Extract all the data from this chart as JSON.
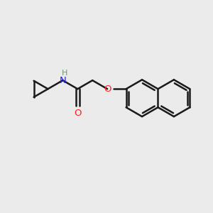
{
  "background_color": "#ebebeb",
  "bond_color": "#1a1a1a",
  "bond_width": 1.8,
  "N_color": "#2020ff",
  "O_color": "#ff2020",
  "H_color": "#6a9a6a",
  "figsize": [
    3.0,
    3.0
  ],
  "dpi": 100,
  "xlim": [
    0,
    10
  ],
  "ylim": [
    0,
    10
  ]
}
